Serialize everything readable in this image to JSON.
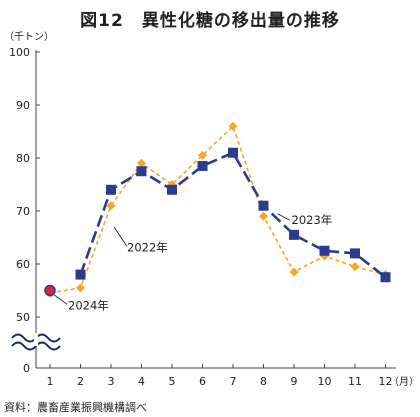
{
  "title": "図12　異性化糖の移出量の推移",
  "source": "資料：農畜産業振興機構調べ",
  "colors": {
    "series_2022": "#F5A623",
    "series_2023": "#2E3A8C",
    "marker_2024": "#D9263A",
    "axis": "#444444"
  },
  "chart_data": {
    "type": "line",
    "title": "図12　異性化糖の移出量の推移",
    "ylabel": "（千トン）",
    "xlabel": "（月）",
    "x": [
      1,
      2,
      3,
      4,
      5,
      6,
      7,
      8,
      9,
      10,
      11,
      12
    ],
    "x_tick_labels": [
      "1",
      "2",
      "3",
      "4",
      "5",
      "6",
      "7",
      "8",
      "9",
      "10",
      "11",
      "12"
    ],
    "y_tick_labels": [
      "100",
      "90",
      "80",
      "70",
      "60",
      "50",
      "0"
    ],
    "ylim": [
      0,
      100
    ],
    "axis_break": "between 0 and 50",
    "grid": false,
    "series": [
      {
        "name": "2022年",
        "style": "dashed-diamond",
        "color": "#F5A623",
        "values": [
          54.5,
          55.5,
          71,
          79,
          75,
          80.5,
          86,
          69,
          58.5,
          61.5,
          59.5,
          58
        ]
      },
      {
        "name": "2023年",
        "style": "dashed-square",
        "color": "#2E3A8C",
        "values": [
          null,
          58,
          74,
          77.5,
          74,
          78.5,
          81,
          71,
          65.5,
          62.5,
          62,
          57.5
        ]
      },
      {
        "name": "2024年",
        "style": "point",
        "color": "#D9263A",
        "values": [
          55,
          null,
          null,
          null,
          null,
          null,
          null,
          null,
          null,
          null,
          null,
          null
        ]
      }
    ],
    "annotations": [
      {
        "text": "2023年"
      },
      {
        "text": "2022年"
      },
      {
        "text": "2024年"
      }
    ]
  }
}
